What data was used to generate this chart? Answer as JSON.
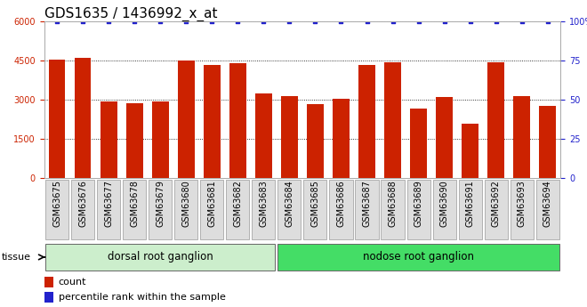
{
  "title": "GDS1635 / 1436992_x_at",
  "categories": [
    "GSM63675",
    "GSM63676",
    "GSM63677",
    "GSM63678",
    "GSM63679",
    "GSM63680",
    "GSM63681",
    "GSM63682",
    "GSM63683",
    "GSM63684",
    "GSM63685",
    "GSM63686",
    "GSM63687",
    "GSM63688",
    "GSM63689",
    "GSM63690",
    "GSM63691",
    "GSM63692",
    "GSM63693",
    "GSM63694"
  ],
  "values": [
    4550,
    4600,
    2950,
    2880,
    2950,
    4500,
    4350,
    4400,
    3250,
    3150,
    2850,
    3050,
    4350,
    4450,
    2650,
    3100,
    2100,
    4450,
    3150,
    2750
  ],
  "percentile_values": [
    100,
    100,
    100,
    100,
    100,
    100,
    100,
    100,
    100,
    100,
    100,
    100,
    100,
    100,
    100,
    100,
    100,
    100,
    100,
    100
  ],
  "bar_color": "#cc2200",
  "percentile_color": "#2222cc",
  "ylim_left": [
    0,
    6000
  ],
  "ylim_right": [
    0,
    100
  ],
  "yticks_left": [
    0,
    1500,
    3000,
    4500,
    6000
  ],
  "yticks_right": [
    0,
    25,
    50,
    75,
    100
  ],
  "groups": [
    {
      "label": "dorsal root ganglion",
      "start": 0,
      "end": 9
    },
    {
      "label": "nodose root ganglion",
      "start": 9,
      "end": 20
    }
  ],
  "tissue_label": "tissue",
  "legend_count_label": "count",
  "legend_percentile_label": "percentile rank within the sample",
  "title_fontsize": 11,
  "tick_fontsize": 7,
  "group_fontsize": 8.5,
  "legend_fontsize": 8,
  "grid_color": "#000000",
  "group_bg_left": "#cceecc",
  "group_bg_right": "#44dd66",
  "xtick_bg": "#dddddd",
  "xtick_border": "#999999"
}
